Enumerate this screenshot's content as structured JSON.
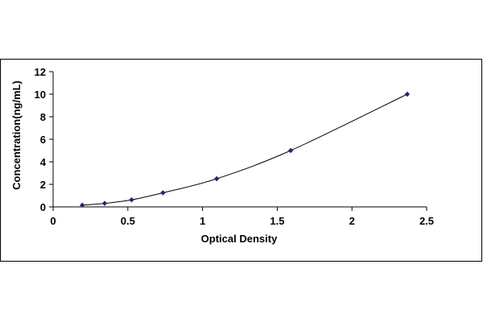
{
  "chart_data": {
    "type": "scatter",
    "title": "",
    "xlabel": "Optical Density",
    "ylabel": "Concentration(ng/mL)",
    "xlim": [
      0,
      2.5
    ],
    "ylim": [
      0,
      12
    ],
    "xticks": [
      "0",
      "0.5",
      "1",
      "1.5",
      "2",
      "2.5"
    ],
    "yticks": [
      "0",
      "2",
      "4",
      "6",
      "8",
      "10",
      "12"
    ],
    "grid": false,
    "legend": "none",
    "series": [
      {
        "points": [
          {
            "x": 0.195,
            "y": 0.156
          },
          {
            "x": 0.345,
            "y": 0.312
          },
          {
            "x": 0.525,
            "y": 0.625
          },
          {
            "x": 0.735,
            "y": 1.25
          },
          {
            "x": 1.095,
            "y": 2.5
          },
          {
            "x": 1.59,
            "y": 5
          },
          {
            "x": 2.37,
            "y": 10
          }
        ]
      }
    ],
    "trendline": "smooth",
    "marker_color": "#1f2a6b",
    "line_color": "#000000"
  }
}
